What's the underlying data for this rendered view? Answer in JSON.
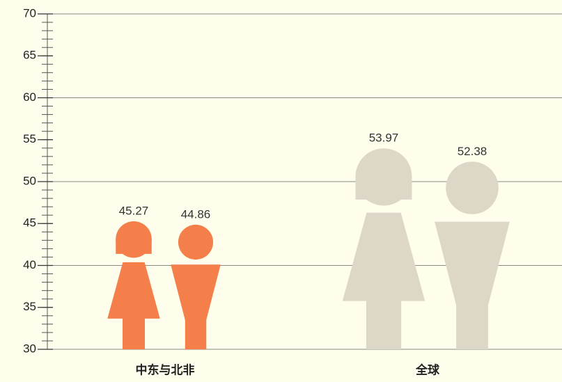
{
  "chart_data": {
    "type": "pictogram",
    "categories": [
      "中东与北非",
      "全球"
    ],
    "category_colors": [
      "#f47f4a",
      "#ddd7c8"
    ],
    "series": [
      {
        "shape": "female",
        "values": [
          45.27,
          53.97
        ]
      },
      {
        "shape": "male",
        "values": [
          44.86,
          52.38
        ]
      }
    ],
    "ylim": [
      30,
      70
    ],
    "yticks": [
      30,
      35,
      40,
      45,
      50,
      55,
      60,
      65,
      70
    ],
    "gridlines": [
      30,
      40,
      50,
      60,
      70
    ],
    "minor_tick_step": 1
  }
}
